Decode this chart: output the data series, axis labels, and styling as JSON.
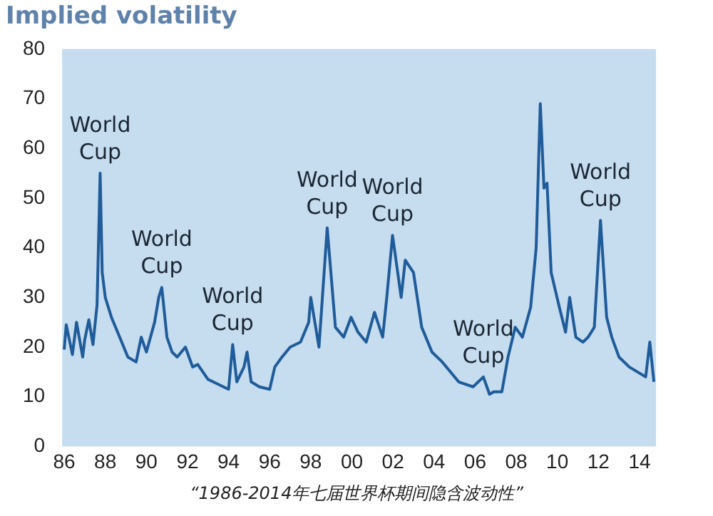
{
  "chart_data": {
    "type": "line",
    "title": "Implied volatility",
    "x": [
      1986.0,
      1986.1,
      1986.4,
      1986.6,
      1986.9,
      1987.0,
      1987.2,
      1987.4,
      1987.6,
      1987.75,
      1987.85,
      1988.0,
      1988.3,
      1988.75,
      1989.1,
      1989.5,
      1989.75,
      1990.0,
      1990.4,
      1990.6,
      1990.75,
      1991.0,
      1991.25,
      1991.5,
      1991.9,
      1992.25,
      1992.5,
      1993.0,
      1993.5,
      1994.0,
      1994.2,
      1994.4,
      1994.75,
      1994.9,
      1995.1,
      1995.5,
      1996.0,
      1996.25,
      1996.6,
      1997.0,
      1997.5,
      1997.9,
      1998.0,
      1998.4,
      1998.8,
      1999.2,
      1999.6,
      1999.96,
      2000.3,
      2000.7,
      2001.1,
      2001.5,
      2001.7,
      2001.98,
      2002.4,
      2002.6,
      2003.0,
      2003.4,
      2003.9,
      2004.4,
      2005.2,
      2005.9,
      2006.4,
      2006.7,
      2006.9,
      2007.3,
      2007.6,
      2007.95,
      2008.3,
      2008.7,
      2008.97,
      2009.17,
      2009.35,
      2009.5,
      2009.7,
      2010.1,
      2010.4,
      2010.6,
      2010.9,
      2011.25,
      2011.5,
      2011.8,
      2012.1,
      2012.4,
      2012.65,
      2013.0,
      2013.5,
      2013.9,
      2014.3,
      2014.5,
      2014.7
    ],
    "series": [
      {
        "color": "#1f5c99",
        "values": [
          19.5,
          24.5,
          18.5,
          25,
          18,
          21.5,
          25.5,
          20.5,
          28.5,
          55,
          35,
          30,
          26,
          21.5,
          18,
          17,
          22,
          19,
          25,
          30,
          32,
          22,
          19,
          18,
          20,
          16,
          16.5,
          13.5,
          12.5,
          11.5,
          20.5,
          13,
          16,
          19,
          13,
          12,
          11.5,
          16,
          18,
          20,
          21,
          25,
          30,
          20,
          44,
          24,
          22,
          26,
          23,
          21,
          27,
          22,
          30,
          42.5,
          30,
          37.5,
          35,
          24,
          19,
          17,
          13,
          12,
          14,
          10.5,
          11,
          11,
          18,
          24,
          22,
          28,
          40,
          69,
          52,
          53,
          35,
          28,
          23,
          30,
          22,
          21,
          22,
          24,
          45.5,
          26,
          22,
          18,
          16,
          15,
          14,
          21,
          13
        ]
      }
    ],
    "xlim": [
      1985.9,
      2014.8
    ],
    "xticks": [
      {
        "value": 1986,
        "label": "86"
      },
      {
        "value": 1988,
        "label": "88"
      },
      {
        "value": 1990,
        "label": "90"
      },
      {
        "value": 1992,
        "label": "92"
      },
      {
        "value": 1994,
        "label": "94"
      },
      {
        "value": 1996,
        "label": "96"
      },
      {
        "value": 1998,
        "label": "98"
      },
      {
        "value": 2000,
        "label": "00"
      },
      {
        "value": 2002,
        "label": "02"
      },
      {
        "value": 2004,
        "label": "04"
      },
      {
        "value": 2006,
        "label": "06"
      },
      {
        "value": 2008,
        "label": "08"
      },
      {
        "value": 2010,
        "label": "10"
      },
      {
        "value": 2012,
        "label": "12"
      },
      {
        "value": 2014,
        "label": "14"
      }
    ],
    "ylim": [
      0,
      80
    ],
    "yticks": [
      0,
      10,
      20,
      30,
      40,
      50,
      60,
      70,
      80
    ],
    "grid": false,
    "legend": false,
    "marker": "none",
    "line_style": "solid",
    "annotations": [
      {
        "text": "World\nCup",
        "x": 1987.75,
        "y": 55
      },
      {
        "text": "World\nCup",
        "x": 1990.75,
        "y": 32
      },
      {
        "text": "World\nCup",
        "x": 1994.2,
        "y": 20.5
      },
      {
        "text": "World\nCup",
        "x": 1998.8,
        "y": 44
      },
      {
        "text": "World\nCup",
        "x": 2001.98,
        "y": 42.5
      },
      {
        "text": "World\nCup",
        "x": 2006.4,
        "y": 14
      },
      {
        "text": "World\nCup",
        "x": 2012.1,
        "y": 45.5
      },
      "“1986-2014年七届世界杯期间隐含波动性”"
    ]
  }
}
